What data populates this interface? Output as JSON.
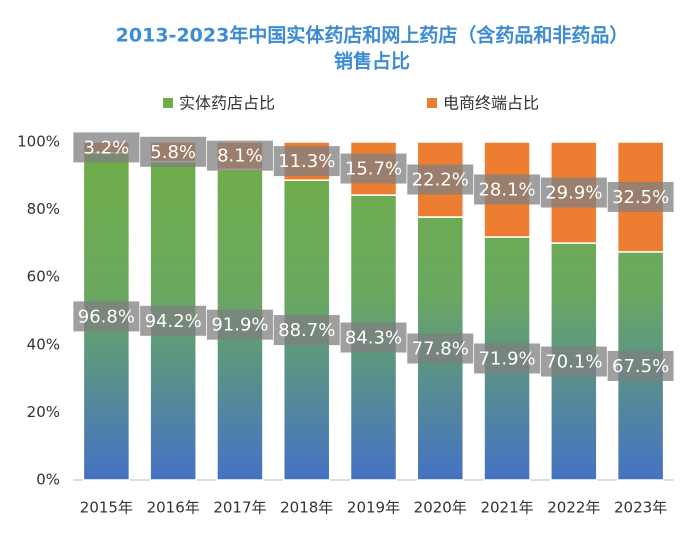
{
  "chart_data": {
    "type": "stacked-bar",
    "title": [
      "2013-2023年中国实体药店和网上药店（含药品和非药品）",
      "销售占比"
    ],
    "categories": [
      "2015年",
      "2016年",
      "2017年",
      "2018年",
      "2019年",
      "2020年",
      "2021年",
      "2022年",
      "2023年"
    ],
    "series": [
      {
        "name": "实体药店占比",
        "color": "#70ad47",
        "values": [
          96.8,
          94.2,
          91.9,
          88.7,
          84.3,
          77.8,
          71.9,
          70.1,
          67.5
        ],
        "value_labels": [
          "96.8%",
          "94.2%",
          "91.9%",
          "88.7%",
          "84.3%",
          "77.8%",
          "71.9%",
          "70.1%",
          "67.5%"
        ]
      },
      {
        "name": "电商终端占比",
        "color": "#ed7d31",
        "values": [
          3.2,
          5.8,
          8.1,
          11.3,
          15.7,
          22.2,
          28.1,
          29.9,
          32.5
        ],
        "value_labels": [
          "3.2%",
          "5.8%",
          "8.1%",
          "11.3%",
          "15.7%",
          "22.2%",
          "28.1%",
          "29.9%",
          "32.5%"
        ]
      }
    ],
    "ylim": [
      0,
      100
    ],
    "yticks": [
      {
        "value": 0,
        "label": "0%"
      },
      {
        "value": 20,
        "label": "20%"
      },
      {
        "value": 40,
        "label": "40%"
      },
      {
        "value": 60,
        "label": "60%"
      },
      {
        "value": 80,
        "label": "80%"
      },
      {
        "value": 100,
        "label": "100%"
      }
    ],
    "legend": "top",
    "grid": false
  }
}
